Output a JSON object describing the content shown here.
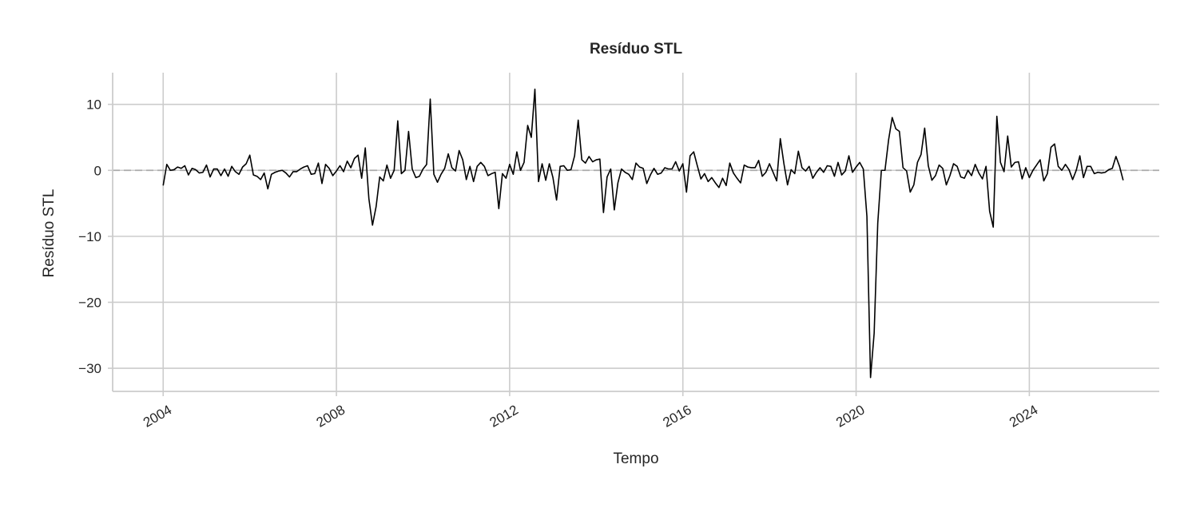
{
  "chart_data": {
    "type": "line",
    "title": "Resíduo STL",
    "xlabel": "Tempo",
    "ylabel": "Resíduo STL",
    "x_axis": "monthly dates",
    "xlim": [
      "2002-11",
      "2027-01"
    ],
    "ylim": [
      -33.5,
      14.8
    ],
    "xticks": [
      {
        "label": "2004",
        "value": "2004-01"
      },
      {
        "label": "2008",
        "value": "2008-01"
      },
      {
        "label": "2012",
        "value": "2012-01"
      },
      {
        "label": "2016",
        "value": "2016-01"
      },
      {
        "label": "2020",
        "value": "2020-01"
      },
      {
        "label": "2024",
        "value": "2024-01"
      }
    ],
    "yticks": [
      10,
      0,
      -10,
      -20,
      -30
    ],
    "ytick_labels": [
      "10",
      "0",
      "−10",
      "−20",
      "−30"
    ],
    "grid": true,
    "reference_line": {
      "y": 0,
      "style": "dashed",
      "color": "#aaaaaa"
    },
    "colors": {
      "line": "#000000",
      "grid": "#cccccc",
      "axis": "#cccccc",
      "text": "#262626"
    },
    "series": [
      {
        "start": "2004-01",
        "frequency": "monthly",
        "color": "#000000",
        "values": [
          -2.3,
          0.9,
          0.0,
          0.1,
          0.5,
          0.3,
          0.7,
          -0.7,
          0.3,
          0.1,
          -0.4,
          -0.3,
          0.8,
          -1.0,
          0.2,
          0.2,
          -0.8,
          0.2,
          -0.9,
          0.6,
          -0.2,
          -0.6,
          0.5,
          1.0,
          2.3,
          -0.7,
          -0.9,
          -1.4,
          -0.4,
          -2.8,
          -0.6,
          -0.3,
          -0.1,
          0.0,
          -0.4,
          -1.0,
          -0.2,
          -0.2,
          0.2,
          0.5,
          0.7,
          -0.6,
          -0.5,
          1.1,
          -2.0,
          0.9,
          0.3,
          -0.8,
          -0.1,
          0.7,
          -0.2,
          1.4,
          0.4,
          1.8,
          2.3,
          -1.2,
          3.4,
          -4.3,
          -8.3,
          -5.5,
          -1.0,
          -1.6,
          0.8,
          -1.2,
          0.0,
          7.5,
          -0.5,
          0.0,
          5.9,
          0.2,
          -1.1,
          -0.9,
          0.2,
          0.9,
          10.8,
          -0.6,
          -1.8,
          -0.6,
          0.3,
          2.5,
          0.4,
          -0.1,
          3.0,
          1.6,
          -1.4,
          0.6,
          -1.7,
          0.6,
          1.2,
          0.6,
          -0.8,
          -0.5,
          -0.3,
          -5.8,
          -0.5,
          -1.2,
          0.9,
          -0.6,
          2.8,
          0.0,
          1.2,
          6.8,
          5.0,
          12.3,
          -1.7,
          1.0,
          -1.5,
          1.0,
          -1.1,
          -4.5,
          0.6,
          0.7,
          0.0,
          0.1,
          2.2,
          7.6,
          1.6,
          1.1,
          2.1,
          1.3,
          1.6,
          1.7,
          -6.4,
          -1.0,
          0.2,
          -6.0,
          -1.9,
          0.2,
          -0.3,
          -0.6,
          -1.4,
          1.1,
          0.5,
          0.3,
          -2.0,
          -0.7,
          0.3,
          -0.6,
          -0.4,
          0.4,
          0.2,
          0.2,
          1.3,
          -0.1,
          1.0,
          -3.3,
          2.2,
          2.8,
          0.7,
          -1.3,
          -0.5,
          -1.7,
          -1.1,
          -1.9,
          -2.6,
          -1.2,
          -2.3,
          1.1,
          -0.4,
          -1.2,
          -1.9,
          0.8,
          0.5,
          0.4,
          0.4,
          1.5,
          -0.9,
          -0.3,
          1.0,
          -0.3,
          -1.6,
          4.8,
          1.0,
          -2.2,
          0.1,
          -0.5,
          2.9,
          0.4,
          -0.1,
          0.6,
          -1.2,
          -0.3,
          0.4,
          -0.3,
          0.7,
          0.6,
          -0.9,
          1.2,
          -0.7,
          -0.1,
          2.2,
          -0.3,
          0.5,
          1.2,
          0.2,
          -7.0,
          -31.4,
          -24.7,
          -8.0,
          0.0,
          0.0,
          4.6,
          8.0,
          6.3,
          5.9,
          0.4,
          -0.1,
          -3.3,
          -2.2,
          1.2,
          2.4,
          6.4,
          0.7,
          -1.5,
          -0.8,
          0.8,
          0.3,
          -2.2,
          -0.8,
          1.0,
          0.6,
          -1.0,
          -1.2,
          0.0,
          -0.8,
          0.9,
          -0.4,
          -1.3,
          0.6,
          -6.2,
          -8.6,
          8.2,
          1.2,
          -0.2,
          5.2,
          0.5,
          1.2,
          1.3,
          -1.3,
          0.4,
          -1.1,
          0.0,
          0.8,
          1.6,
          -1.6,
          -0.5,
          3.5,
          4.0,
          0.6,
          0.0,
          0.9,
          0.1,
          -1.4,
          0.0,
          2.2,
          -1.1,
          0.6,
          0.6,
          -0.5,
          -0.3,
          -0.4,
          -0.3,
          0.1,
          0.3,
          2.1,
          0.6,
          -1.5
        ]
      }
    ]
  }
}
